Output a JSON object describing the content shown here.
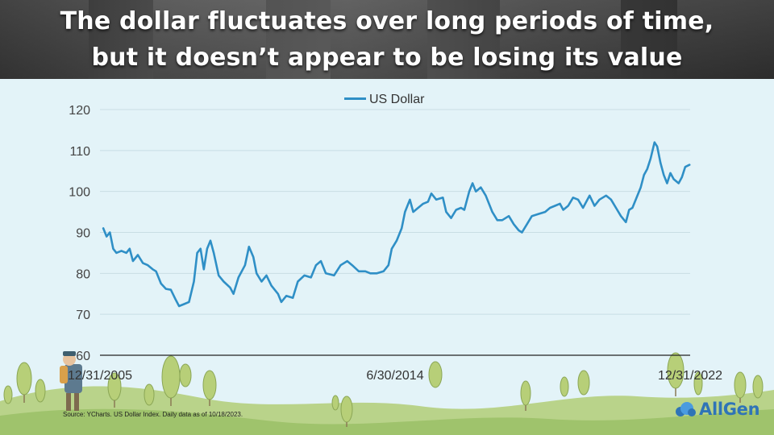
{
  "title_lines": [
    "The dollar fluctuates over long periods of time,",
    "but it doesn’t appear to be losing its value"
  ],
  "source": "Source: YCharts. US Dollar Index. Daily data as of 10/18/2023.",
  "logo_text": "AllGen",
  "colors": {
    "line": "#2f8fc6",
    "grid": "#c8dde4",
    "axis": "#222222",
    "background": "#e3f3f8"
  },
  "chart_data": {
    "type": "line",
    "title": "",
    "xlabel": "",
    "ylabel": "",
    "ylim": [
      60,
      120
    ],
    "yticks": [
      60,
      70,
      80,
      90,
      100,
      110,
      120
    ],
    "xticks": [
      "12/31/2005",
      "6/30/2014",
      "12/31/2022"
    ],
    "xlim_years": [
      2005.9,
      2023.8
    ],
    "legend_position": "top-center",
    "grid": true,
    "series": [
      {
        "name": "US Dollar",
        "points": [
          [
            2006.0,
            91.0
          ],
          [
            2006.1,
            89.0
          ],
          [
            2006.2,
            90.0
          ],
          [
            2006.3,
            86.0
          ],
          [
            2006.4,
            85.0
          ],
          [
            2006.55,
            85.5
          ],
          [
            2006.7,
            85.0
          ],
          [
            2006.8,
            86.0
          ],
          [
            2006.9,
            83.0
          ],
          [
            2007.05,
            84.5
          ],
          [
            2007.2,
            82.5
          ],
          [
            2007.35,
            82.0
          ],
          [
            2007.5,
            81.0
          ],
          [
            2007.6,
            80.5
          ],
          [
            2007.75,
            77.5
          ],
          [
            2007.9,
            76.2
          ],
          [
            2008.05,
            76.0
          ],
          [
            2008.2,
            73.5
          ],
          [
            2008.3,
            72.0
          ],
          [
            2008.45,
            72.5
          ],
          [
            2008.6,
            73.0
          ],
          [
            2008.75,
            78.0
          ],
          [
            2008.85,
            85.0
          ],
          [
            2008.95,
            86.0
          ],
          [
            2009.05,
            81.0
          ],
          [
            2009.15,
            86.0
          ],
          [
            2009.25,
            88.0
          ],
          [
            2009.35,
            85.0
          ],
          [
            2009.5,
            79.5
          ],
          [
            2009.65,
            78.0
          ],
          [
            2009.85,
            76.5
          ],
          [
            2009.95,
            75.0
          ],
          [
            2010.1,
            79.0
          ],
          [
            2010.3,
            82.0
          ],
          [
            2010.42,
            86.5
          ],
          [
            2010.55,
            84.0
          ],
          [
            2010.65,
            80.0
          ],
          [
            2010.8,
            78.0
          ],
          [
            2010.95,
            79.5
          ],
          [
            2011.1,
            77.0
          ],
          [
            2011.3,
            75.0
          ],
          [
            2011.4,
            73.0
          ],
          [
            2011.55,
            74.5
          ],
          [
            2011.75,
            74.0
          ],
          [
            2011.9,
            78.0
          ],
          [
            2012.1,
            79.5
          ],
          [
            2012.3,
            79.0
          ],
          [
            2012.45,
            82.0
          ],
          [
            2012.6,
            83.0
          ],
          [
            2012.75,
            80.0
          ],
          [
            2013.0,
            79.5
          ],
          [
            2013.2,
            82.0
          ],
          [
            2013.4,
            83.0
          ],
          [
            2013.55,
            82.0
          ],
          [
            2013.75,
            80.5
          ],
          [
            2013.95,
            80.5
          ],
          [
            2014.1,
            80.0
          ],
          [
            2014.3,
            80.0
          ],
          [
            2014.5,
            80.5
          ],
          [
            2014.65,
            82.0
          ],
          [
            2014.75,
            86.0
          ],
          [
            2014.9,
            88.0
          ],
          [
            2015.05,
            91.0
          ],
          [
            2015.15,
            95.0
          ],
          [
            2015.3,
            98.0
          ],
          [
            2015.4,
            95.0
          ],
          [
            2015.55,
            96.0
          ],
          [
            2015.7,
            97.0
          ],
          [
            2015.85,
            97.5
          ],
          [
            2015.95,
            99.5
          ],
          [
            2016.1,
            98.0
          ],
          [
            2016.3,
            98.5
          ],
          [
            2016.4,
            95.0
          ],
          [
            2016.55,
            93.5
          ],
          [
            2016.7,
            95.5
          ],
          [
            2016.85,
            96.0
          ],
          [
            2016.95,
            95.5
          ],
          [
            2017.1,
            100.0
          ],
          [
            2017.2,
            102.0
          ],
          [
            2017.3,
            100.0
          ],
          [
            2017.45,
            101.0
          ],
          [
            2017.6,
            99.0
          ],
          [
            2017.8,
            95.0
          ],
          [
            2017.95,
            93.0
          ],
          [
            2018.1,
            93.0
          ],
          [
            2018.3,
            94.0
          ],
          [
            2018.45,
            92.0
          ],
          [
            2018.6,
            90.5
          ],
          [
            2018.7,
            90.0
          ],
          [
            2018.85,
            92.0
          ],
          [
            2019.0,
            94.0
          ],
          [
            2019.2,
            94.5
          ],
          [
            2019.4,
            95.0
          ],
          [
            2019.55,
            96.0
          ],
          [
            2019.7,
            96.5
          ],
          [
            2019.85,
            97.0
          ],
          [
            2019.95,
            95.5
          ],
          [
            2020.1,
            96.5
          ],
          [
            2020.25,
            98.5
          ],
          [
            2020.4,
            98.0
          ],
          [
            2020.55,
            96.0
          ],
          [
            2020.75,
            99.0
          ],
          [
            2020.9,
            96.5
          ],
          [
            2021.05,
            98.0
          ],
          [
            2021.25,
            99.0
          ],
          [
            2021.4,
            98.0
          ],
          [
            2021.55,
            96.0
          ],
          [
            2021.7,
            94.0
          ],
          [
            2021.85,
            92.5
          ],
          [
            2021.95,
            95.5
          ],
          [
            2022.05,
            96.0
          ],
          [
            2022.2,
            99.0
          ],
          [
            2022.3,
            101.0
          ],
          [
            2022.4,
            104.0
          ],
          [
            2022.5,
            105.5
          ],
          [
            2022.6,
            108.0
          ],
          [
            2022.72,
            112.0
          ],
          [
            2022.8,
            111.0
          ],
          [
            2022.9,
            107.0
          ],
          [
            2023.0,
            104.0
          ],
          [
            2023.1,
            102.0
          ],
          [
            2023.2,
            104.5
          ],
          [
            2023.3,
            103.0
          ],
          [
            2023.45,
            102.0
          ],
          [
            2023.55,
            103.5
          ],
          [
            2023.65,
            106.0
          ],
          [
            2023.78,
            106.5
          ]
        ]
      }
    ]
  }
}
